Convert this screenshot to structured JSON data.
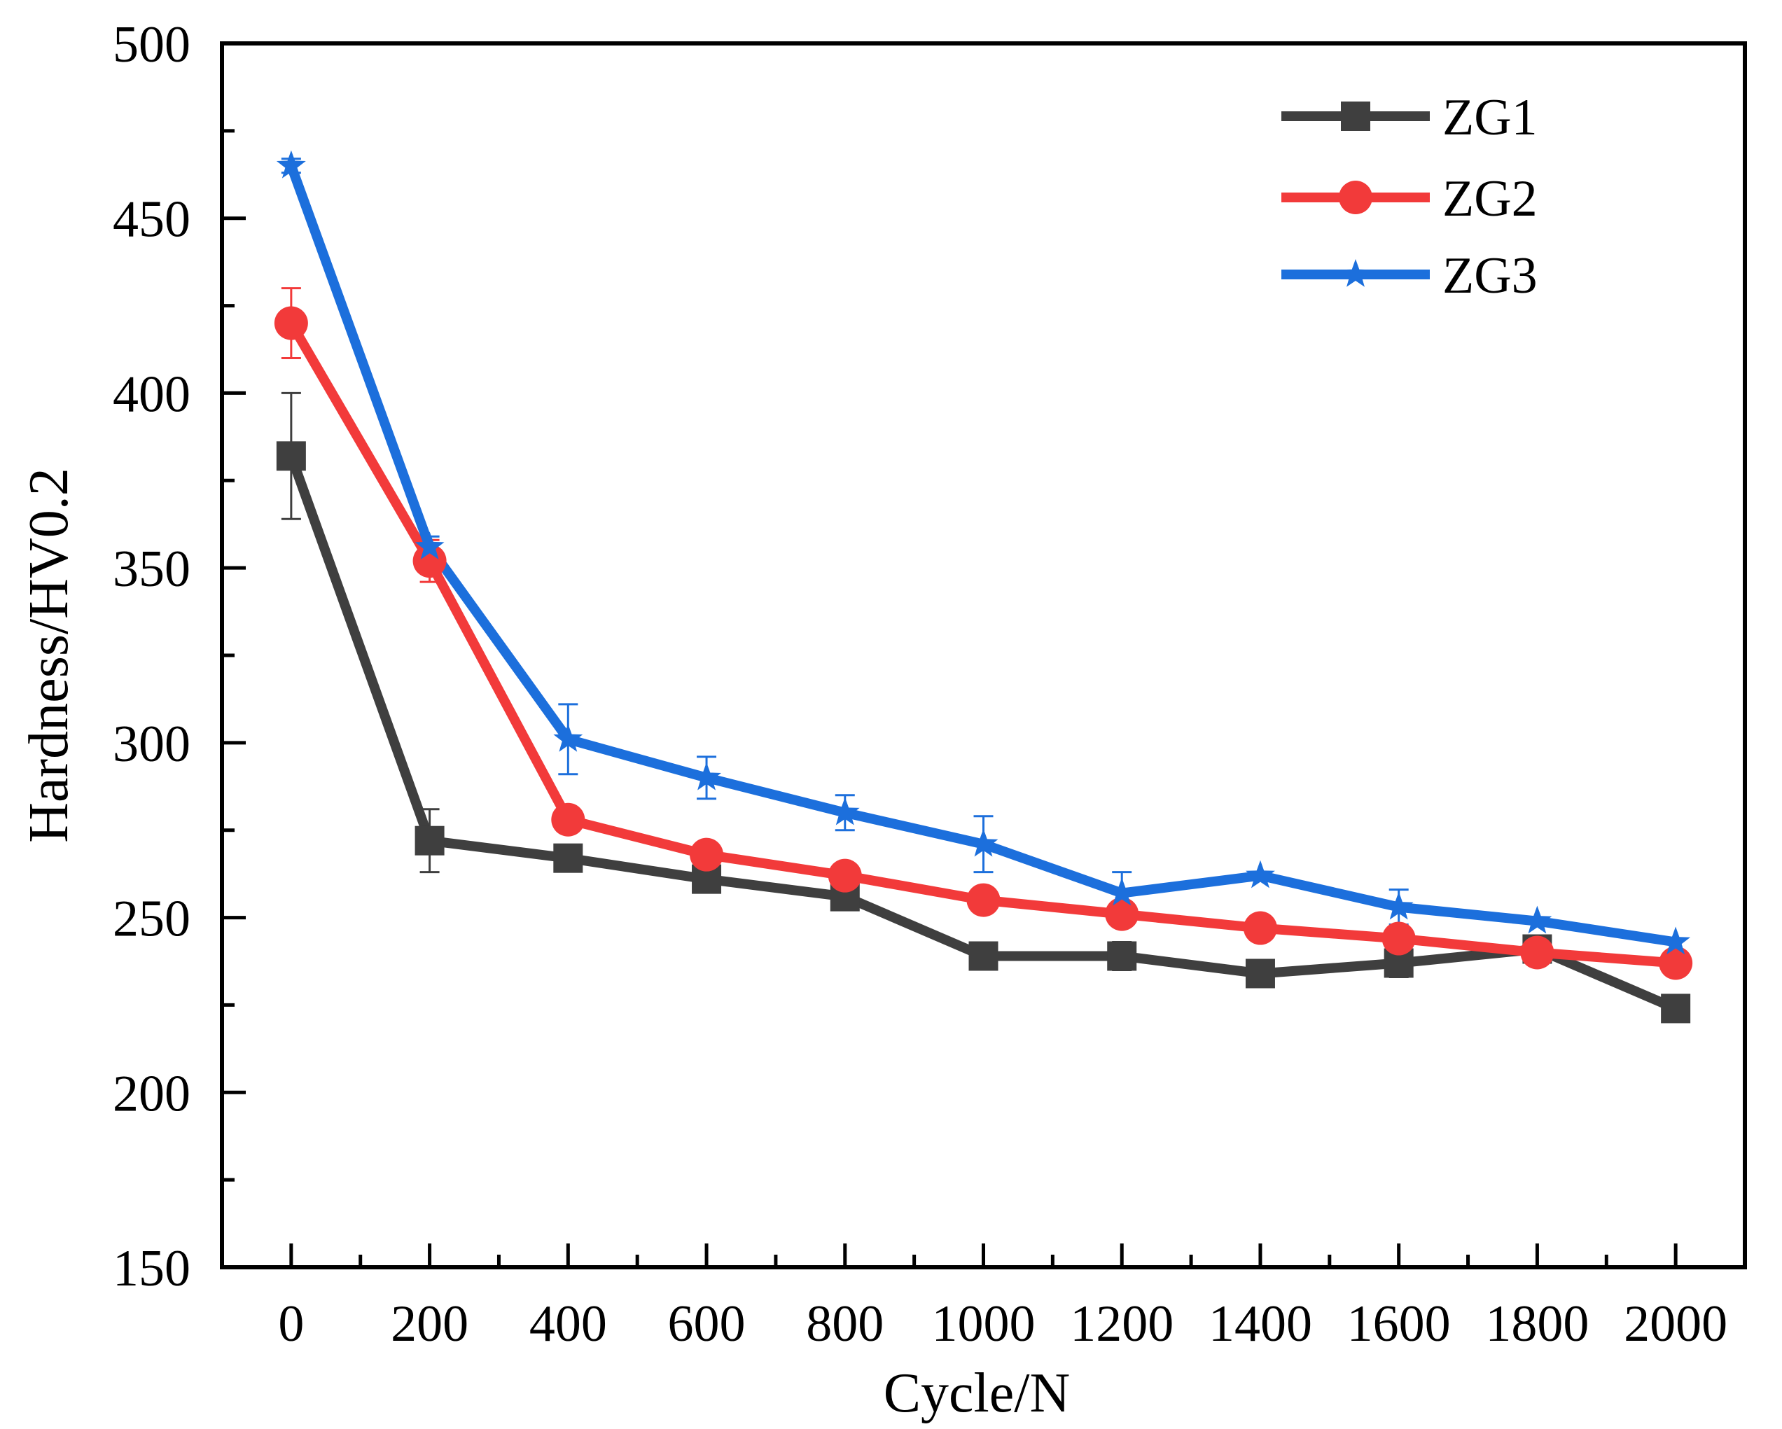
{
  "chart_data": {
    "type": "line",
    "title": "",
    "xlabel": "Cycle/N",
    "ylabel": "Hardness/HV0.2",
    "xlim": [
      -100,
      2100
    ],
    "ylim": [
      150,
      500
    ],
    "x": [
      0,
      200,
      400,
      600,
      800,
      1000,
      1200,
      1400,
      1600,
      1800,
      2000
    ],
    "xticks": [
      0,
      200,
      400,
      600,
      800,
      1000,
      1200,
      1400,
      1600,
      1800,
      2000
    ],
    "xtick_labels": [
      "0",
      "200",
      "400",
      "600",
      "800",
      "1000",
      "1200",
      "1400",
      "1600",
      "1800",
      "2000"
    ],
    "yticks": [
      150,
      200,
      250,
      300,
      350,
      400,
      450,
      500
    ],
    "ytick_labels": [
      "150",
      "200",
      "250",
      "300",
      "350",
      "400",
      "450",
      "500"
    ],
    "grid": false,
    "legend_position": "top-right",
    "series": [
      {
        "name": "ZG1",
        "color": "#3f3f3f",
        "marker": "square",
        "values": [
          382,
          272,
          267,
          261,
          256,
          239,
          239,
          234,
          237,
          241,
          224
        ],
        "errors": [
          18,
          9,
          0,
          0,
          0,
          0,
          4,
          0,
          4,
          0,
          0
        ]
      },
      {
        "name": "ZG2",
        "color": "#f23a3a",
        "marker": "circle",
        "values": [
          420,
          352,
          278,
          268,
          262,
          255,
          251,
          247,
          244,
          240,
          237
        ],
        "errors": [
          10,
          6,
          0,
          0,
          3,
          0,
          3,
          2,
          3,
          0,
          0
        ]
      },
      {
        "name": "ZG3",
        "color": "#1c6fdc",
        "marker": "star",
        "values": [
          465,
          356,
          301,
          290,
          280,
          271,
          257,
          262,
          253,
          249,
          243
        ],
        "errors": [
          2,
          3,
          10,
          6,
          5,
          8,
          6,
          0,
          5,
          0,
          0
        ]
      }
    ]
  }
}
